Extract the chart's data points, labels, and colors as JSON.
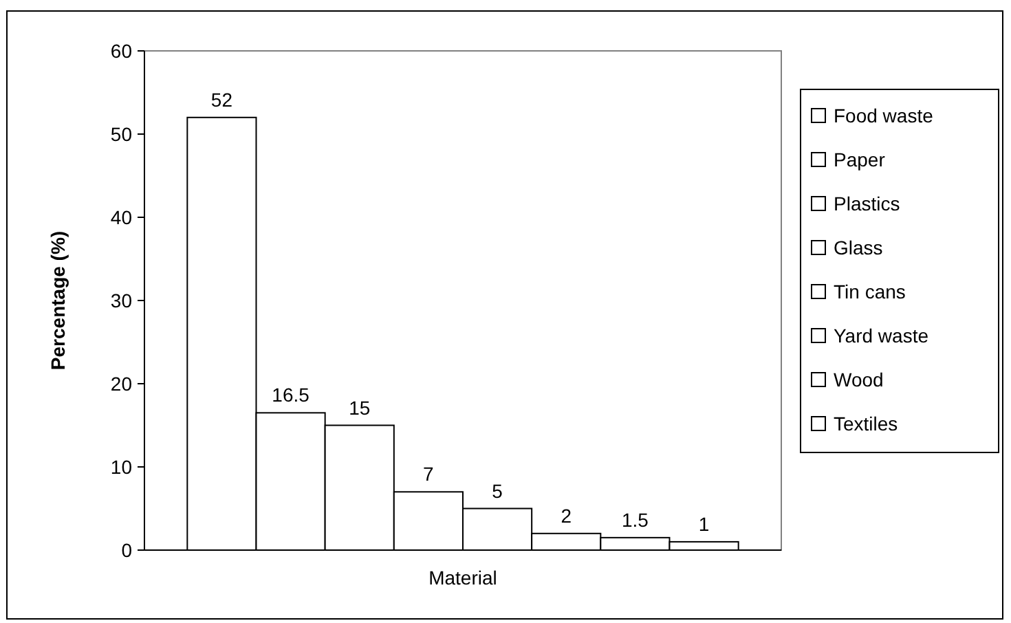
{
  "chart_data": {
    "type": "bar",
    "categories": [
      "Material"
    ],
    "ylabel": "Percentage (%)",
    "ylim": [
      0,
      60
    ],
    "yticks": [
      0,
      10,
      20,
      30,
      40,
      50,
      60
    ],
    "grid": false,
    "legend": "right",
    "data_labels": true,
    "series": [
      {
        "name": "Food waste",
        "color": "#ffffff",
        "values": [
          52
        ]
      },
      {
        "name": "Paper",
        "color": "#ffffff",
        "values": [
          16.5
        ]
      },
      {
        "name": "Plastics",
        "color": "#ffffff",
        "values": [
          15
        ]
      },
      {
        "name": "Glass",
        "color": "#ffffff",
        "values": [
          7
        ]
      },
      {
        "name": "Tin cans",
        "color": "#ffffff",
        "values": [
          5
        ]
      },
      {
        "name": "Yard waste",
        "color": "#ffffff",
        "values": [
          2
        ]
      },
      {
        "name": "Wood",
        "color": "#ffffff",
        "values": [
          1.5
        ]
      },
      {
        "name": "Textiles",
        "color": "#ffffff",
        "values": [
          1
        ]
      }
    ]
  }
}
